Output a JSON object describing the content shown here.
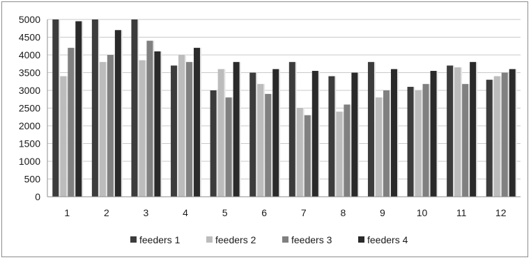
{
  "chart_data": {
    "type": "bar",
    "categories": [
      "1",
      "2",
      "3",
      "4",
      "5",
      "6",
      "7",
      "8",
      "9",
      "10",
      "11",
      "12"
    ],
    "series": [
      {
        "name": "feeders 1",
        "color": "#3c3c3c",
        "values": [
          5000,
          5000,
          5000,
          3700,
          3000,
          3500,
          3800,
          3400,
          3800,
          3100,
          3700,
          3300
        ]
      },
      {
        "name": "feeders 2",
        "color": "#bcbcbc",
        "values": [
          3400,
          3800,
          3850,
          4000,
          3600,
          3180,
          2500,
          2400,
          2800,
          3000,
          3650,
          3400
        ]
      },
      {
        "name": "feeders 3",
        "color": "#808080",
        "values": [
          4200,
          4000,
          4400,
          3800,
          2800,
          2900,
          2300,
          2600,
          3000,
          3180,
          3180,
          3500
        ]
      },
      {
        "name": "feeders 4",
        "color": "#2a2a2a",
        "values": [
          4950,
          4700,
          4100,
          4200,
          3800,
          3600,
          3550,
          3500,
          3600,
          3550,
          3800,
          3600
        ]
      }
    ],
    "yticks": [
      "0",
      "500",
      "1000",
      "1500",
      "2000",
      "2500",
      "3000",
      "3500",
      "4000",
      "4500",
      "5000"
    ],
    "ylim": [
      0,
      5000
    ],
    "grid": true,
    "legend_position": "bottom",
    "title": "",
    "xlabel": "",
    "ylabel": ""
  }
}
